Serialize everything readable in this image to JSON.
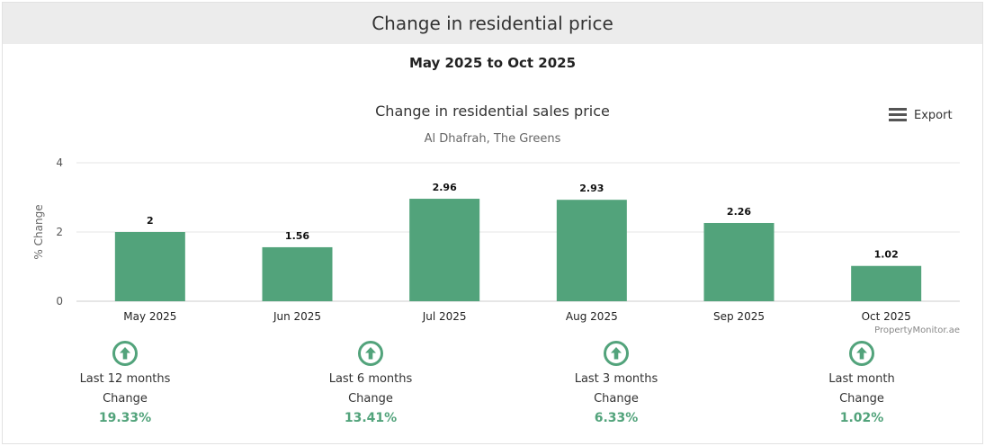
{
  "header": {
    "title": "Change in residential price"
  },
  "period": "May 2025 to Oct 2025",
  "export_label": "Export",
  "credit": "PropertyMonitor.ae",
  "colors": {
    "bar": "#52a37b",
    "accent": "#52a37b",
    "grid": "#e6e6e6"
  },
  "chart_data": {
    "type": "bar",
    "title": "Change in residential sales price",
    "subtitle": "Al Dhafrah, The Greens",
    "xlabel": "",
    "ylabel": "% Change",
    "categories": [
      "May 2025",
      "Jun 2025",
      "Jul 2025",
      "Aug 2025",
      "Sep 2025",
      "Oct 2025"
    ],
    "values": [
      2,
      1.56,
      2.96,
      2.93,
      2.26,
      1.02
    ],
    "data_labels": [
      "2",
      "1.56",
      "2.96",
      "2.93",
      "2.26",
      "1.02"
    ],
    "ylim": [
      0,
      4
    ],
    "yticks": [
      0,
      2,
      4
    ],
    "grid": true,
    "legend": "none"
  },
  "stats": [
    {
      "period": "Last 12 months",
      "label": "Change",
      "value": "19.33%",
      "direction": "up",
      "icon": "arrow-up-circle-icon"
    },
    {
      "period": "Last 6 months",
      "label": "Change",
      "value": "13.41%",
      "direction": "up",
      "icon": "arrow-up-circle-icon"
    },
    {
      "period": "Last 3 months",
      "label": "Change",
      "value": "6.33%",
      "direction": "up",
      "icon": "arrow-up-circle-icon"
    },
    {
      "period": "Last month",
      "label": "Change",
      "value": "1.02%",
      "direction": "up",
      "icon": "arrow-up-circle-icon"
    }
  ]
}
